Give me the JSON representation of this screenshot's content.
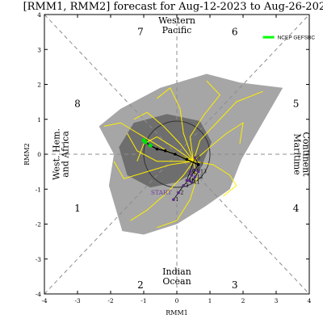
{
  "chart_data": {
    "type": "scatter",
    "title": "[RMM1, RMM2] forecast for Aug-12-2023 to Aug-26-2023",
    "xlabel": "RMM1",
    "ylabel": "RMM2",
    "xlim": [
      -4,
      4
    ],
    "ylim": [
      -4,
      4
    ],
    "x_ticks": [
      "-4",
      "-3",
      "-2",
      "-1",
      "0",
      "1",
      "2",
      "3",
      "4"
    ],
    "y_ticks": [
      "-4",
      "-3",
      "-2",
      "-1",
      "0",
      "1",
      "2",
      "3",
      "4"
    ],
    "phases": [
      {
        "label": "1",
        "x": -3.0,
        "y": -1.55
      },
      {
        "label": "2",
        "x": -1.1,
        "y": -3.75
      },
      {
        "label": "3",
        "x": 1.75,
        "y": -3.75
      },
      {
        "label": "4",
        "x": 3.6,
        "y": -1.55
      },
      {
        "label": "5",
        "x": 3.6,
        "y": 1.45
      },
      {
        "label": "6",
        "x": 1.75,
        "y": 3.5
      },
      {
        "label": "7",
        "x": -1.1,
        "y": 3.5
      },
      {
        "label": "8",
        "x": -3.0,
        "y": 1.45
      }
    ],
    "regions": {
      "top": [
        "Western",
        "Pacific"
      ],
      "bottom": [
        "Indian",
        "Ocean"
      ],
      "left": [
        "West. Hem.",
        "and Africa"
      ],
      "right": [
        "Maritime",
        "Continent"
      ]
    },
    "legend": {
      "label": "NCEP GEFSBC",
      "color": "#00ff00",
      "position": "top-right"
    },
    "start_label": "START",
    "unit_circle_radius": 1,
    "envelope_outer": [
      [
        -1.7,
        1.3
      ],
      [
        -0.5,
        1.9
      ],
      [
        0.9,
        2.3
      ],
      [
        1.9,
        2.05
      ],
      [
        3.2,
        1.9
      ],
      [
        1.95,
        -0.15
      ],
      [
        1.6,
        -1.0
      ],
      [
        0.85,
        -1.5
      ],
      [
        0.0,
        -2.0
      ],
      [
        -1.0,
        -2.3
      ],
      [
        -1.65,
        -2.2
      ],
      [
        -2.05,
        -0.9
      ],
      [
        -1.9,
        0.0
      ],
      [
        -2.35,
        0.8
      ]
    ],
    "envelope_inner": [
      [
        -1.3,
        0.9
      ],
      [
        -0.3,
        1.15
      ],
      [
        0.7,
        0.95
      ],
      [
        1.05,
        0.35
      ],
      [
        0.7,
        -0.45
      ],
      [
        0.0,
        -0.8
      ],
      [
        -0.8,
        -0.95
      ],
      [
        -1.5,
        -0.6
      ],
      [
        -1.75,
        0.2
      ]
    ],
    "observed_path": [
      {
        "day": 1,
        "x": -0.1,
        "y": -1.3
      },
      {
        "day": 2,
        "x": 0.05,
        "y": -1.1
      },
      {
        "day": 3,
        "x": 0.2,
        "y": -0.9
      },
      {
        "day": 4,
        "x": 0.35,
        "y": -0.75
      },
      {
        "day": 5,
        "x": 0.45,
        "y": -0.6
      },
      {
        "day": 6,
        "x": 0.55,
        "y": -0.45
      },
      {
        "day": 7,
        "x": 0.65,
        "y": -0.3
      },
      {
        "day": 8,
        "x": 0.55,
        "y": -0.1
      },
      {
        "day": 9,
        "x": 0.4,
        "y": -0.5
      },
      {
        "day": 10,
        "x": 0.3,
        "y": -0.75
      },
      {
        "day": 11,
        "x": 0.45,
        "y": -0.8
      },
      {
        "day": 12,
        "x": 0.55,
        "y": -0.65
      },
      {
        "day": 13,
        "x": 0.65,
        "y": -0.5
      }
    ],
    "forecast_mean": [
      [
        0.65,
        -0.3
      ],
      [
        0.3,
        -0.15
      ],
      [
        -0.05,
        0.0
      ],
      [
        -0.35,
        0.1
      ],
      [
        -0.6,
        0.15
      ],
      [
        -0.8,
        0.25
      ],
      [
        -0.95,
        0.35
      ],
      [
        -1.0,
        0.4
      ]
    ],
    "members": [
      [
        [
          0.5,
          -0.2
        ],
        [
          0.1,
          0.3
        ],
        [
          -0.4,
          0.8
        ],
        [
          -0.9,
          1.2
        ],
        [
          -1.3,
          1.0
        ]
      ],
      [
        [
          0.5,
          -0.2
        ],
        [
          0.2,
          0.6
        ],
        [
          0.1,
          1.3
        ],
        [
          -0.2,
          1.9
        ],
        [
          -0.6,
          1.6
        ]
      ],
      [
        [
          0.5,
          -0.2
        ],
        [
          0.7,
          0.4
        ],
        [
          1.2,
          0.9
        ],
        [
          1.8,
          1.5
        ],
        [
          2.6,
          1.8
        ]
      ],
      [
        [
          0.5,
          -0.2
        ],
        [
          1.0,
          0.2
        ],
        [
          1.5,
          0.6
        ],
        [
          2.0,
          0.9
        ],
        [
          1.9,
          0.3
        ]
      ],
      [
        [
          0.5,
          -0.2
        ],
        [
          0.2,
          -0.6
        ],
        [
          -0.3,
          -1.1
        ],
        [
          -0.9,
          -1.6
        ],
        [
          -1.4,
          -1.9
        ]
      ],
      [
        [
          0.5,
          -0.2
        ],
        [
          -0.2,
          -0.3
        ],
        [
          -0.9,
          -0.5
        ],
        [
          -1.6,
          -0.7
        ],
        [
          -1.9,
          -0.2
        ]
      ],
      [
        [
          0.5,
          -0.2
        ],
        [
          -0.3,
          0.1
        ],
        [
          -1.0,
          0.5
        ],
        [
          -1.7,
          0.9
        ],
        [
          -2.2,
          0.8
        ]
      ],
      [
        [
          0.5,
          -0.2
        ],
        [
          0.6,
          -0.7
        ],
        [
          0.4,
          -1.3
        ],
        [
          0.0,
          -1.9
        ],
        [
          -0.6,
          -2.1
        ]
      ],
      [
        [
          0.5,
          -0.2
        ],
        [
          -0.1,
          0.2
        ],
        [
          -0.6,
          0.5
        ],
        [
          -1.0,
          0.3
        ],
        [
          -1.2,
          -0.2
        ]
      ],
      [
        [
          0.5,
          -0.2
        ],
        [
          0.4,
          0.5
        ],
        [
          0.8,
          1.1
        ],
        [
          1.3,
          1.7
        ],
        [
          0.9,
          2.1
        ]
      ],
      [
        [
          0.5,
          -0.2
        ],
        [
          0.0,
          -0.2
        ],
        [
          -0.6,
          -0.2
        ],
        [
          -1.2,
          0.1
        ],
        [
          -1.5,
          0.6
        ]
      ],
      [
        [
          0.5,
          -0.2
        ],
        [
          1.1,
          -0.3
        ],
        [
          1.6,
          -0.6
        ],
        [
          1.8,
          -0.9
        ],
        [
          1.4,
          -1.2
        ]
      ]
    ],
    "grid": false
  }
}
